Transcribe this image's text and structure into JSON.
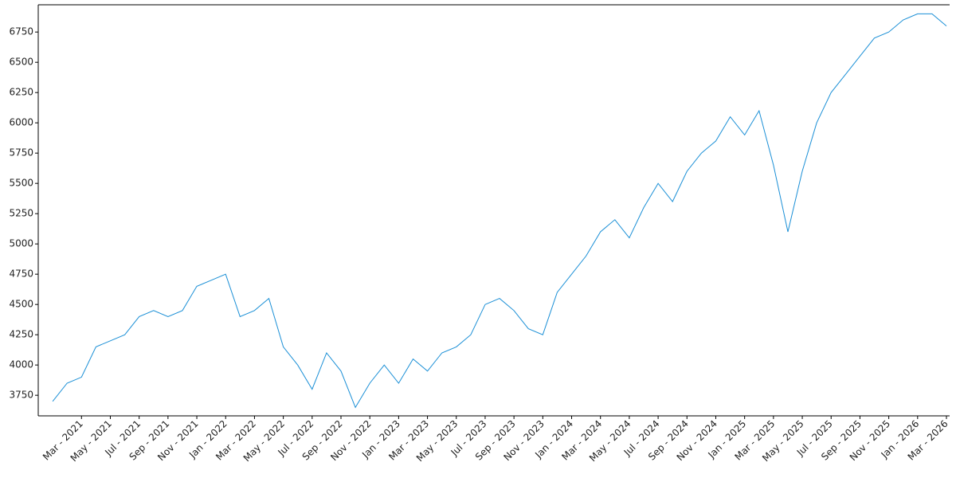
{
  "chart_data": {
    "type": "line",
    "x": [
      "2021-01",
      "2021-02",
      "2021-03",
      "2021-04",
      "2021-05",
      "2021-06",
      "2021-07",
      "2021-08",
      "2021-09",
      "2021-10",
      "2021-11",
      "2021-12",
      "2022-01",
      "2022-02",
      "2022-03",
      "2022-04",
      "2022-05",
      "2022-06",
      "2022-07",
      "2022-08",
      "2022-09",
      "2022-10",
      "2022-11",
      "2022-12",
      "2023-01",
      "2023-02",
      "2023-03",
      "2023-04",
      "2023-05",
      "2023-06",
      "2023-07",
      "2023-08",
      "2023-09",
      "2023-10",
      "2023-11",
      "2023-12",
      "2024-01",
      "2024-02",
      "2024-03",
      "2024-04",
      "2024-05",
      "2024-06",
      "2024-07",
      "2024-08",
      "2024-09",
      "2024-10",
      "2024-11",
      "2024-12",
      "2025-01",
      "2025-02",
      "2025-03",
      "2025-04",
      "2025-05",
      "2025-06",
      "2025-07",
      "2025-08",
      "2025-09",
      "2025-10",
      "2025-11",
      "2025-12",
      "2026-01",
      "2026-02",
      "2026-03"
    ],
    "series": [
      {
        "color": "#1a8fd6",
        "values": [
          3700,
          3850,
          3900,
          4150,
          4200,
          4250,
          4400,
          4450,
          4400,
          4450,
          4650,
          4700,
          4750,
          4400,
          4450,
          4550,
          4150,
          4000,
          3800,
          4100,
          3950,
          3650,
          3850,
          4000,
          3850,
          4050,
          3950,
          4100,
          4150,
          4250,
          4500,
          4550,
          4450,
          4300,
          4250,
          4600,
          4750,
          4900,
          5100,
          5200,
          5050,
          5300,
          5500,
          5350,
          5600,
          5750,
          5850,
          6050,
          5900,
          6100,
          5650,
          5100,
          5600,
          6000,
          6250,
          6400,
          6550,
          6700,
          6750,
          6850,
          6900,
          6900,
          6800
        ]
      }
    ],
    "xlim": [
      "2020-12",
      "2026-03"
    ],
    "xticks": [
      {
        "value": "2021-03",
        "label": "Mar - 2021"
      },
      {
        "value": "2021-05",
        "label": "May - 2021"
      },
      {
        "value": "2021-07",
        "label": "Jul - 2021"
      },
      {
        "value": "2021-09",
        "label": "Sep - 2021"
      },
      {
        "value": "2021-11",
        "label": "Nov - 2021"
      },
      {
        "value": "2022-01",
        "label": "Jan - 2022"
      },
      {
        "value": "2022-03",
        "label": "Mar - 2022"
      },
      {
        "value": "2022-05",
        "label": "May - 2022"
      },
      {
        "value": "2022-07",
        "label": "Jul - 2022"
      },
      {
        "value": "2022-09",
        "label": "Sep - 2022"
      },
      {
        "value": "2022-11",
        "label": "Nov - 2022"
      },
      {
        "value": "2023-01",
        "label": "Jan - 2023"
      },
      {
        "value": "2023-03",
        "label": "Mar - 2023"
      },
      {
        "value": "2023-05",
        "label": "May - 2023"
      },
      {
        "value": "2023-07",
        "label": "Jul - 2023"
      },
      {
        "value": "2023-09",
        "label": "Sep - 2023"
      },
      {
        "value": "2023-11",
        "label": "Nov - 2023"
      },
      {
        "value": "2024-01",
        "label": "Jan - 2024"
      },
      {
        "value": "2024-03",
        "label": "Mar - 2024"
      },
      {
        "value": "2024-05",
        "label": "May - 2024"
      },
      {
        "value": "2024-07",
        "label": "Jul - 2024"
      },
      {
        "value": "2024-09",
        "label": "Sep - 2024"
      },
      {
        "value": "2024-11",
        "label": "Nov - 2024"
      },
      {
        "value": "2025-01",
        "label": "Jan - 2025"
      },
      {
        "value": "2025-03",
        "label": "Mar - 2025"
      },
      {
        "value": "2025-05",
        "label": "May - 2025"
      },
      {
        "value": "2025-07",
        "label": "Jul - 2025"
      },
      {
        "value": "2025-09",
        "label": "Sep - 2025"
      },
      {
        "value": "2025-11",
        "label": "Nov - 2025"
      },
      {
        "value": "2026-01",
        "label": "Jan - 2026"
      },
      {
        "value": "2026-03",
        "label": "Mar - 2026"
      }
    ],
    "ylim": [
      3580,
      6975
    ],
    "yticks": [
      3750,
      4000,
      4250,
      4500,
      4750,
      5000,
      5250,
      5500,
      5750,
      6000,
      6250,
      6500,
      6750
    ]
  }
}
